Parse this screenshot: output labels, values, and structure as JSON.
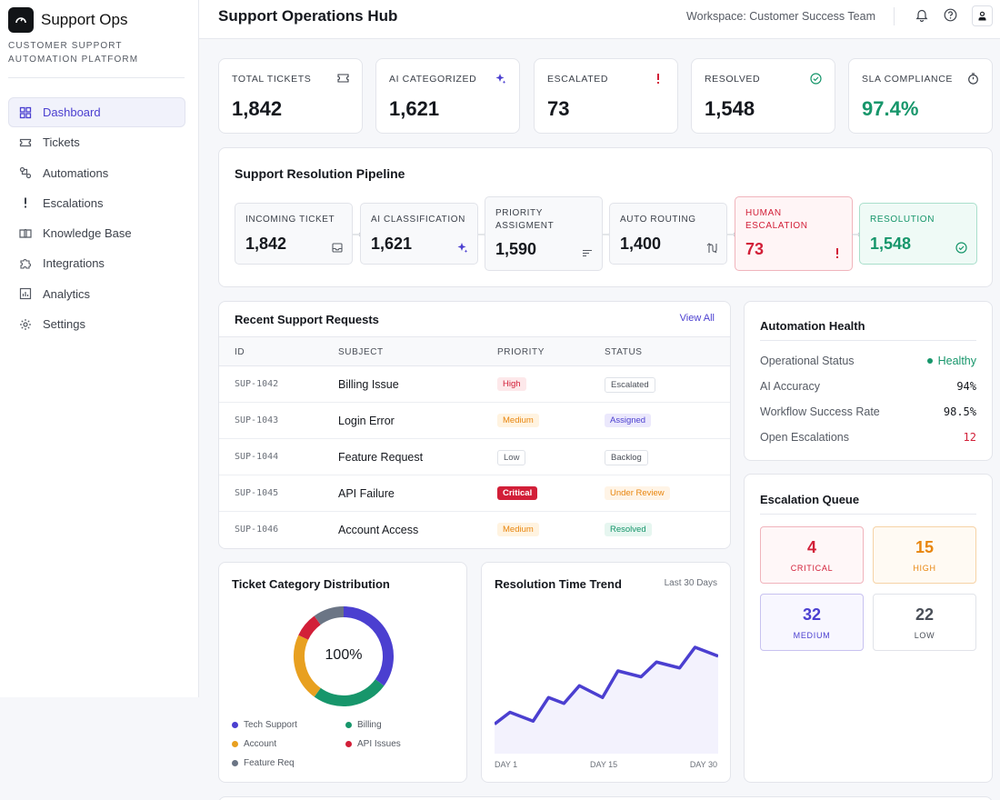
{
  "app": {
    "name": "Support Ops",
    "subtitle": "CUSTOMER SUPPORT AUTOMATION PLATFORM"
  },
  "nav": [
    {
      "label": "Dashboard",
      "icon": "grid-icon",
      "active": true
    },
    {
      "label": "Tickets",
      "icon": "ticket-icon"
    },
    {
      "label": "Automations",
      "icon": "workflow-icon"
    },
    {
      "label": "Escalations",
      "icon": "exclamation-icon"
    },
    {
      "label": "Knowledge Base",
      "icon": "book-icon"
    },
    {
      "label": "Integrations",
      "icon": "puzzle-icon"
    },
    {
      "label": "Analytics",
      "icon": "bar-chart-icon"
    },
    {
      "label": "Settings",
      "icon": "gear-icon"
    }
  ],
  "header": {
    "title": "Support Operations Hub",
    "workspace": "Workspace: Customer Success Team"
  },
  "kpis": [
    {
      "label": "TOTAL TICKETS",
      "value": "1,842",
      "icon": "ticket-icon"
    },
    {
      "label": "AI CATEGORIZED",
      "value": "1,621",
      "icon": "sparkle-icon"
    },
    {
      "label": "ESCALATED",
      "value": "73",
      "icon": "exclamation-icon"
    },
    {
      "label": "RESOLVED",
      "value": "1,548",
      "icon": "check-circle-icon"
    },
    {
      "label": "SLA COMPLIANCE",
      "value": "97.4%",
      "icon": "timer-icon"
    }
  ],
  "pipeline": {
    "title": "Support Resolution Pipeline",
    "stages": [
      {
        "label": "INCOMING TICKET",
        "value": "1,842",
        "icon": "inbox-icon"
      },
      {
        "label": "AI CLASSIFICATION",
        "value": "1,621",
        "icon": "sparkle-icon"
      },
      {
        "label": "PRIORITY ASSIGMENT",
        "value": "1,590",
        "icon": "sort-icon"
      },
      {
        "label": "AUTO ROUTING",
        "value": "1,400",
        "icon": "route-icon"
      },
      {
        "label": "HUMAN ESCALATION",
        "value": "73",
        "icon": "exclamation-icon"
      },
      {
        "label": "RESOLUTION",
        "value": "1,548",
        "icon": "check-circle-icon"
      }
    ]
  },
  "requests": {
    "title": "Recent Support Requests",
    "view_all": "View All",
    "columns": [
      "ID",
      "SUBJECT",
      "PRIORITY",
      "STATUS"
    ],
    "rows": [
      {
        "id": "SUP-1042",
        "subject": "Billing Issue",
        "priority": "High",
        "status": "Escalated"
      },
      {
        "id": "SUP-1043",
        "subject": "Login Error",
        "priority": "Medium",
        "status": "Assigned"
      },
      {
        "id": "SUP-1044",
        "subject": "Feature Request",
        "priority": "Low",
        "status": "Backlog"
      },
      {
        "id": "SUP-1045",
        "subject": "API Failure",
        "priority": "Critical",
        "status": "Under Review"
      },
      {
        "id": "SUP-1046",
        "subject": "Account Access",
        "priority": "Medium",
        "status": "Resolved"
      }
    ]
  },
  "health": {
    "title": "Automation Health",
    "items": [
      {
        "label": "Operational Status",
        "value": "Healthy"
      },
      {
        "label": "AI Accuracy",
        "value": "94%"
      },
      {
        "label": "Workflow Success Rate",
        "value": "98.5%"
      },
      {
        "label": "Open Escalations",
        "value": "12"
      }
    ]
  },
  "queue": {
    "title": "Escalation Queue",
    "items": [
      {
        "count": "4",
        "label": "CRITICAL",
        "color": "#d21f38"
      },
      {
        "count": "15",
        "label": "HIGH",
        "color": "#e8860f"
      },
      {
        "count": "32",
        "label": "MEDIUM",
        "color": "#4b3fd0"
      },
      {
        "count": "22",
        "label": "LOW",
        "color": "#4a4f58"
      }
    ]
  },
  "distribution": {
    "title": "Ticket Category Distribution",
    "center": "100%",
    "legend": [
      {
        "label": "Tech Support",
        "color": "#4b3fd0"
      },
      {
        "label": "Billing",
        "color": "#17966b"
      },
      {
        "label": "Account",
        "color": "#e8a020"
      },
      {
        "label": "API Issues",
        "color": "#d21f38"
      },
      {
        "label": "Feature Req",
        "color": "#6b7585"
      }
    ]
  },
  "trend": {
    "title": "Resolution Time Trend",
    "range": "Last 30 Days",
    "xlabels": [
      "DAY 1",
      "DAY 15",
      "DAY 30"
    ]
  },
  "chart_data": [
    {
      "type": "pie",
      "title": "Ticket Category Distribution",
      "categories": [
        "Tech Support",
        "Billing",
        "Account",
        "API Issues",
        "Feature Req"
      ],
      "values": [
        35,
        25,
        22,
        8,
        10
      ]
    },
    {
      "type": "line",
      "title": "Resolution Time Trend",
      "x": [
        1,
        3,
        6,
        8,
        10,
        12,
        15,
        17,
        20,
        22,
        25,
        27,
        30
      ],
      "values": [
        10,
        14,
        11,
        19,
        17,
        23,
        19,
        28,
        26,
        31,
        29,
        36,
        33
      ]
    }
  ]
}
